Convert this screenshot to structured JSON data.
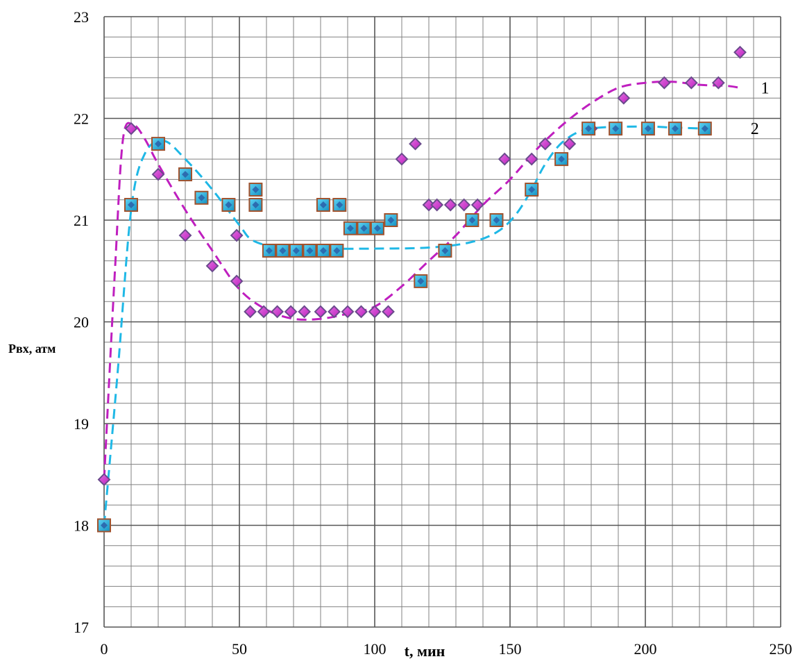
{
  "chart_data": {
    "type": "scatter",
    "xlabel": "t, мин",
    "ylabel": "Рвх, атм",
    "xlim": [
      0,
      250
    ],
    "ylim": [
      17,
      23
    ],
    "x_ticks": [
      0,
      50,
      100,
      150,
      200,
      250
    ],
    "y_ticks": [
      17,
      18,
      19,
      20,
      21,
      22,
      23
    ],
    "grid": true,
    "colors": {
      "series_1": "#bf1fbf",
      "series_2": "#1fb8e6",
      "marker_edge": "#6a4a8c",
      "square_edge": "#a0522d",
      "grid": "#808080"
    },
    "series": [
      {
        "marker": "diamond",
        "points": [
          [
            0,
            18.45
          ],
          [
            10,
            21.9
          ],
          [
            20,
            21.45
          ],
          [
            30,
            20.85
          ],
          [
            40,
            20.55
          ],
          [
            49,
            20.4
          ],
          [
            49,
            20.85
          ],
          [
            54,
            20.1
          ],
          [
            59,
            20.1
          ],
          [
            64,
            20.1
          ],
          [
            69,
            20.1
          ],
          [
            74,
            20.1
          ],
          [
            80,
            20.1
          ],
          [
            85,
            20.1
          ],
          [
            90,
            20.1
          ],
          [
            95,
            20.1
          ],
          [
            100,
            20.1
          ],
          [
            105,
            20.1
          ],
          [
            110,
            21.6
          ],
          [
            115,
            21.75
          ],
          [
            120,
            21.15
          ],
          [
            123,
            21.15
          ],
          [
            128,
            21.15
          ],
          [
            133,
            21.15
          ],
          [
            138,
            21.15
          ],
          [
            148,
            21.6
          ],
          [
            158,
            21.6
          ],
          [
            163,
            21.75
          ],
          [
            172,
            21.75
          ],
          [
            180,
            21.9
          ],
          [
            192,
            22.2
          ],
          [
            207,
            22.35
          ],
          [
            217,
            22.35
          ],
          [
            227,
            22.35
          ],
          [
            235,
            22.65
          ]
        ]
      },
      {
        "marker": "square",
        "points": [
          [
            0,
            18.0
          ],
          [
            10,
            21.15
          ],
          [
            20,
            21.75
          ],
          [
            30,
            21.45
          ],
          [
            36,
            21.22
          ],
          [
            46,
            21.15
          ],
          [
            56,
            21.3
          ],
          [
            56,
            21.15
          ],
          [
            61,
            20.7
          ],
          [
            66,
            20.7
          ],
          [
            71,
            20.7
          ],
          [
            76,
            20.7
          ],
          [
            81,
            20.7
          ],
          [
            86,
            20.7
          ],
          [
            81,
            21.15
          ],
          [
            87,
            21.15
          ],
          [
            91,
            20.92
          ],
          [
            96,
            20.92
          ],
          [
            101,
            20.92
          ],
          [
            106,
            21.0
          ],
          [
            117,
            20.4
          ],
          [
            126,
            20.7
          ],
          [
            136,
            21.0
          ],
          [
            145,
            21.0
          ],
          [
            158,
            21.3
          ],
          [
            169,
            21.6
          ],
          [
            179,
            21.9
          ],
          [
            189,
            21.9
          ],
          [
            201,
            21.9
          ],
          [
            211,
            21.9
          ],
          [
            222,
            21.9
          ]
        ]
      }
    ],
    "trend_lines": [
      {
        "label": "1",
        "color": "#bf1fbf",
        "points": [
          [
            0,
            18.45
          ],
          [
            4,
            20.5
          ],
          [
            7,
            21.8
          ],
          [
            11,
            21.93
          ],
          [
            15,
            21.8
          ],
          [
            20,
            21.55
          ],
          [
            30,
            21.1
          ],
          [
            40,
            20.7
          ],
          [
            50,
            20.32
          ],
          [
            60,
            20.12
          ],
          [
            70,
            20.03
          ],
          [
            80,
            20.03
          ],
          [
            90,
            20.08
          ],
          [
            100,
            20.15
          ],
          [
            110,
            20.35
          ],
          [
            120,
            20.6
          ],
          [
            130,
            20.85
          ],
          [
            140,
            21.15
          ],
          [
            150,
            21.4
          ],
          [
            160,
            21.7
          ],
          [
            170,
            21.95
          ],
          [
            180,
            22.15
          ],
          [
            190,
            22.3
          ],
          [
            200,
            22.35
          ],
          [
            210,
            22.36
          ],
          [
            220,
            22.33
          ],
          [
            230,
            22.32
          ],
          [
            235,
            22.3
          ]
        ]
      },
      {
        "label": "2",
        "color": "#1fb8e6",
        "points": [
          [
            0,
            18.0
          ],
          [
            5,
            19.5
          ],
          [
            10,
            21.1
          ],
          [
            15,
            21.65
          ],
          [
            22,
            21.78
          ],
          [
            30,
            21.6
          ],
          [
            40,
            21.3
          ],
          [
            50,
            20.95
          ],
          [
            55,
            20.8
          ],
          [
            65,
            20.73
          ],
          [
            80,
            20.72
          ],
          [
            100,
            20.72
          ],
          [
            120,
            20.73
          ],
          [
            135,
            20.78
          ],
          [
            145,
            20.88
          ],
          [
            152,
            21.05
          ],
          [
            158,
            21.3
          ],
          [
            163,
            21.55
          ],
          [
            170,
            21.78
          ],
          [
            180,
            21.9
          ],
          [
            200,
            21.92
          ],
          [
            210,
            21.91
          ],
          [
            222,
            21.9
          ]
        ]
      }
    ]
  }
}
